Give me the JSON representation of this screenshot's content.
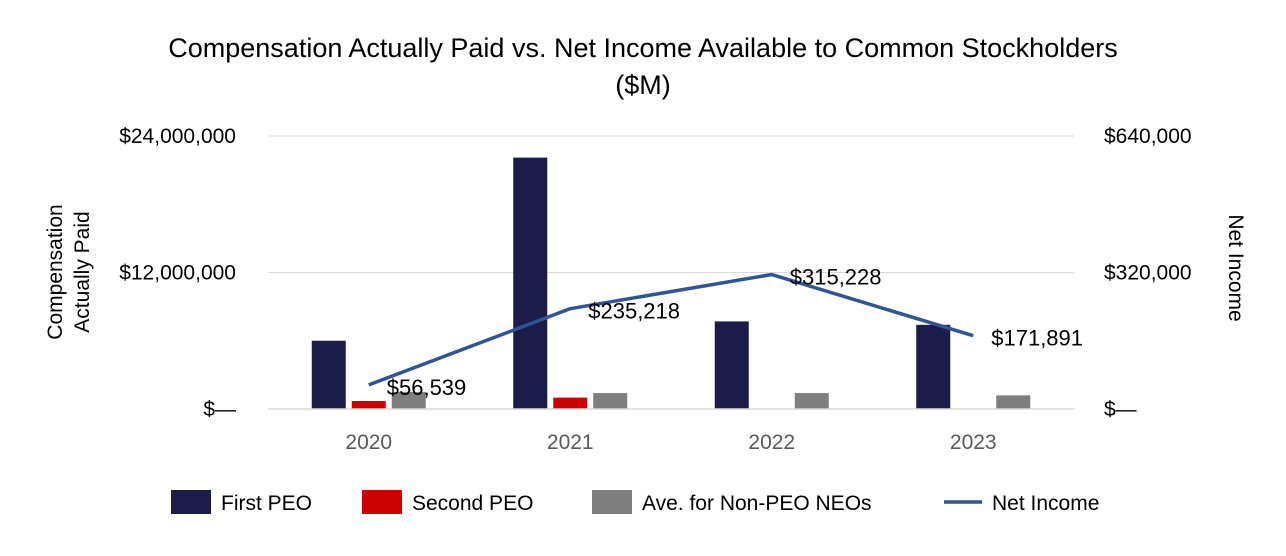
{
  "chart_data": {
    "type": "bar",
    "title_line1": "Compensation Actually Paid vs. Net Income Available to Common Stockholders",
    "title_line2": "($M)",
    "categories": [
      "2020",
      "2021",
      "2022",
      "2023"
    ],
    "ylabel_line1": "Compensation",
    "ylabel_line2": "Actually Paid",
    "y2label": "Net Income",
    "ylim": [
      0,
      24000000
    ],
    "y2lim": [
      0,
      640000
    ],
    "yticks": [
      {
        "value": 0,
        "label": "$—"
      },
      {
        "value": 12000000,
        "label": "$12,000,000"
      },
      {
        "value": 24000000,
        "label": "$24,000,000"
      }
    ],
    "y2ticks": [
      {
        "value": 0,
        "label": "$—"
      },
      {
        "value": 320000,
        "label": "$320,000"
      },
      {
        "value": 640000,
        "label": "$640,000"
      }
    ],
    "series": [
      {
        "name": "First PEO",
        "color": "#1b1c47",
        "values": [
          6000000,
          22100000,
          7700000,
          7400000
        ]
      },
      {
        "name": "Second PEO",
        "color": "#cc0000",
        "values": [
          700000,
          1000000,
          null,
          null
        ]
      },
      {
        "name": "Ave. for Non-PEO NEOs",
        "color": "#7f7f7f",
        "values": [
          1500000,
          1400000,
          1400000,
          1200000
        ]
      }
    ],
    "line": {
      "name": "Net Income",
      "color": "#2f5597",
      "values": [
        56539,
        235218,
        315228,
        171891
      ],
      "labels": [
        "$56,539",
        "$235,218",
        "$315,228",
        "$171,891"
      ]
    },
    "grid": true,
    "legend_position": "bottom"
  }
}
